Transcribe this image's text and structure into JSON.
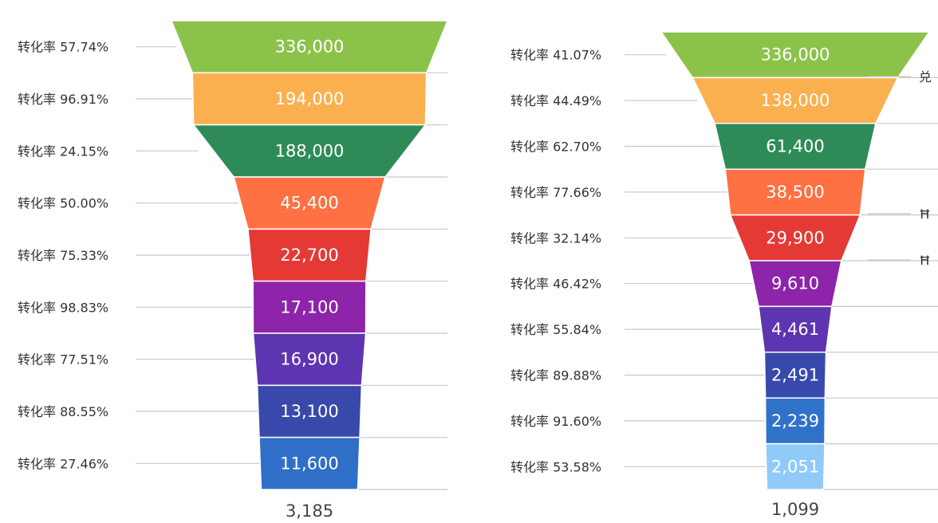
{
  "chart_data": [
    {
      "type": "funnel",
      "stages": [
        {
          "value": 336000,
          "label": "336,000",
          "color": "#8BC34A",
          "rate_label": "转化率 57.74%"
        },
        {
          "value": 194000,
          "label": "194,000",
          "color": "#FBB050",
          "rate_label": "转化率 96.91%"
        },
        {
          "value": 188000,
          "label": "188,000",
          "color": "#2E8B57",
          "rate_label": "转化率 24.15%"
        },
        {
          "value": 45400,
          "label": "45,400",
          "color": "#FF7043",
          "rate_label": "转化率 50.00%"
        },
        {
          "value": 22700,
          "label": "22,700",
          "color": "#E53935",
          "rate_label": "转化率 75.33%"
        },
        {
          "value": 17100,
          "label": "17,100",
          "color": "#8E24AA",
          "rate_label": "转化率 98.83%"
        },
        {
          "value": 16900,
          "label": "16,900",
          "color": "#5E35B1",
          "rate_label": "转化率 77.51%"
        },
        {
          "value": 13100,
          "label": "13,100",
          "color": "#3949AB",
          "rate_label": "转化率 88.55%"
        },
        {
          "value": 11600,
          "label": "11,600",
          "color": "#2F6FC7",
          "rate_label": "转化率 27.46%"
        }
      ],
      "final_label": "3,185"
    },
    {
      "type": "funnel",
      "stages": [
        {
          "value": 336000,
          "label": "336,000",
          "color": "#8BC34A",
          "rate_label": "转化率 41.07%"
        },
        {
          "value": 138000,
          "label": "138,000",
          "color": "#FBB050",
          "rate_label": "转化率 44.49%"
        },
        {
          "value": 61400,
          "label": "61,400",
          "color": "#2E8B57",
          "rate_label": "转化率 62.70%"
        },
        {
          "value": 38500,
          "label": "38,500",
          "color": "#FF7043",
          "rate_label": "转化率 77.66%"
        },
        {
          "value": 29900,
          "label": "29,900",
          "color": "#E53935",
          "rate_label": "转化率 32.14%"
        },
        {
          "value": 9610,
          "label": "9,610",
          "color": "#8E24AA",
          "rate_label": "转化率 46.42%"
        },
        {
          "value": 4461,
          "label": "4,461",
          "color": "#5E35B1",
          "rate_label": "转化率 55.84%"
        },
        {
          "value": 2491,
          "label": "2,491",
          "color": "#3949AB",
          "rate_label": "转化率 89.88%"
        },
        {
          "value": 2239,
          "label": "2,239",
          "color": "#3072C9",
          "rate_label": "转化率 91.60%"
        },
        {
          "value": 2051,
          "label": "2,051",
          "color": "#90CAF9",
          "rate_label": "转化率 53.58%"
        }
      ],
      "final_label": "1,099",
      "cut_off_labels": [
        "兑",
        "Ħ",
        "Ħ"
      ]
    }
  ]
}
